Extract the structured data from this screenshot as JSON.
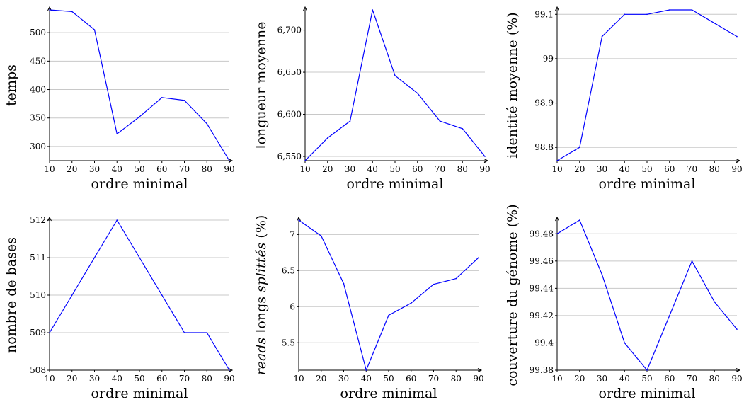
{
  "colors": {
    "series": "#0000ff",
    "grid": "#c8c8c8",
    "axis": "#000000"
  },
  "chart_data": [
    {
      "type": "line",
      "xlabel": "ordre minimal",
      "ylabel": "temps",
      "x": [
        10,
        20,
        30,
        40,
        50,
        60,
        70,
        80,
        90
      ],
      "values": [
        540,
        537,
        505,
        322,
        352,
        386,
        381,
        340,
        275
      ],
      "xlim": [
        10,
        90
      ],
      "ylim": [
        275,
        540
      ],
      "xticks": [
        "10",
        "20",
        "30",
        "40",
        "50",
        "60",
        "70",
        "80",
        "90"
      ],
      "yticks": [
        300,
        350,
        400,
        450,
        500
      ],
      "ytick_labels": [
        "300",
        "350",
        "400",
        "450",
        "500"
      ],
      "grid": "horizontal"
    },
    {
      "type": "line",
      "xlabel": "ordre minimal",
      "ylabel": "longueur moyenne",
      "x": [
        10,
        20,
        30,
        40,
        50,
        60,
        70,
        80,
        90
      ],
      "values": [
        6545,
        6572,
        6592,
        6724,
        6646,
        6625,
        6592,
        6583,
        6550
      ],
      "xlim": [
        10,
        90
      ],
      "ylim": [
        6545,
        6724
      ],
      "xticks": [
        "10",
        "20",
        "30",
        "40",
        "50",
        "60",
        "70",
        "80",
        "90"
      ],
      "yticks": [
        6550,
        6600,
        6650,
        6700
      ],
      "ytick_labels": [
        "6,550",
        "6,600",
        "6,650",
        "6,700"
      ],
      "grid": "horizontal"
    },
    {
      "type": "line",
      "xlabel": "ordre minimal",
      "ylabel": "identité moyenne (%)",
      "x": [
        10,
        20,
        30,
        40,
        50,
        60,
        70,
        80,
        90
      ],
      "values": [
        98.77,
        98.8,
        99.05,
        99.1,
        99.1,
        99.11,
        99.11,
        99.08,
        99.05
      ],
      "xlim": [
        10,
        90
      ],
      "ylim": [
        98.77,
        99.11
      ],
      "xticks": [
        "10",
        "20",
        "30",
        "40",
        "50",
        "60",
        "70",
        "80",
        "90"
      ],
      "yticks": [
        98.8,
        98.9,
        99,
        99.1
      ],
      "ytick_labels": [
        "98.8",
        "98.9",
        "99",
        "99.1"
      ],
      "grid": "horizontal"
    },
    {
      "type": "line",
      "xlabel": "ordre minimal",
      "ylabel": "nombre de bases",
      "x": [
        10,
        20,
        30,
        40,
        50,
        60,
        70,
        80,
        90
      ],
      "values": [
        509,
        510,
        511,
        512,
        511,
        510,
        509,
        509,
        508
      ],
      "xlim": [
        10,
        90
      ],
      "ylim": [
        508,
        512
      ],
      "xticks": [
        "10",
        "20",
        "30",
        "40",
        "50",
        "60",
        "70",
        "80",
        "90"
      ],
      "yticks": [
        508,
        509,
        510,
        511,
        512
      ],
      "ytick_labels": [
        "508",
        "509",
        "510",
        "511",
        "512"
      ],
      "grid": "horizontal"
    },
    {
      "type": "line",
      "xlabel": "ordre minimal",
      "ylabel_italic": "reads",
      "ylabel_mid": " longs ",
      "ylabel_italic2": "splittés",
      "ylabel_end": " (%)",
      "x": [
        10,
        20,
        30,
        40,
        50,
        60,
        70,
        80,
        90
      ],
      "values": [
        7.2,
        6.98,
        6.32,
        5.12,
        5.88,
        6.05,
        6.31,
        6.39,
        6.68
      ],
      "xlim": [
        10,
        90
      ],
      "ylim": [
        5.12,
        7.2
      ],
      "xticks": [
        "10",
        "20",
        "30",
        "40",
        "50",
        "60",
        "70",
        "80",
        "90"
      ],
      "yticks": [
        5.5,
        6,
        6.5,
        7
      ],
      "ytick_labels": [
        "5.5",
        "6",
        "6.5",
        "7"
      ],
      "grid": "horizontal"
    },
    {
      "type": "line",
      "xlabel": "ordre minimal",
      "ylabel": "couverture du génome (%)",
      "x": [
        10,
        20,
        30,
        40,
        50,
        60,
        70,
        80,
        90
      ],
      "values": [
        99.48,
        99.49,
        99.45,
        99.4,
        99.38,
        99.42,
        99.46,
        99.43,
        99.41
      ],
      "xlim": [
        10,
        90
      ],
      "ylim": [
        99.38,
        99.49
      ],
      "xticks": [
        "10",
        "20",
        "30",
        "40",
        "50",
        "60",
        "70",
        "80",
        "90"
      ],
      "yticks": [
        99.38,
        99.4,
        99.42,
        99.44,
        99.46,
        99.48
      ],
      "ytick_labels": [
        "99.38",
        "99.4",
        "99.42",
        "99.44",
        "99.46",
        "99.48"
      ],
      "grid": "horizontal"
    }
  ]
}
